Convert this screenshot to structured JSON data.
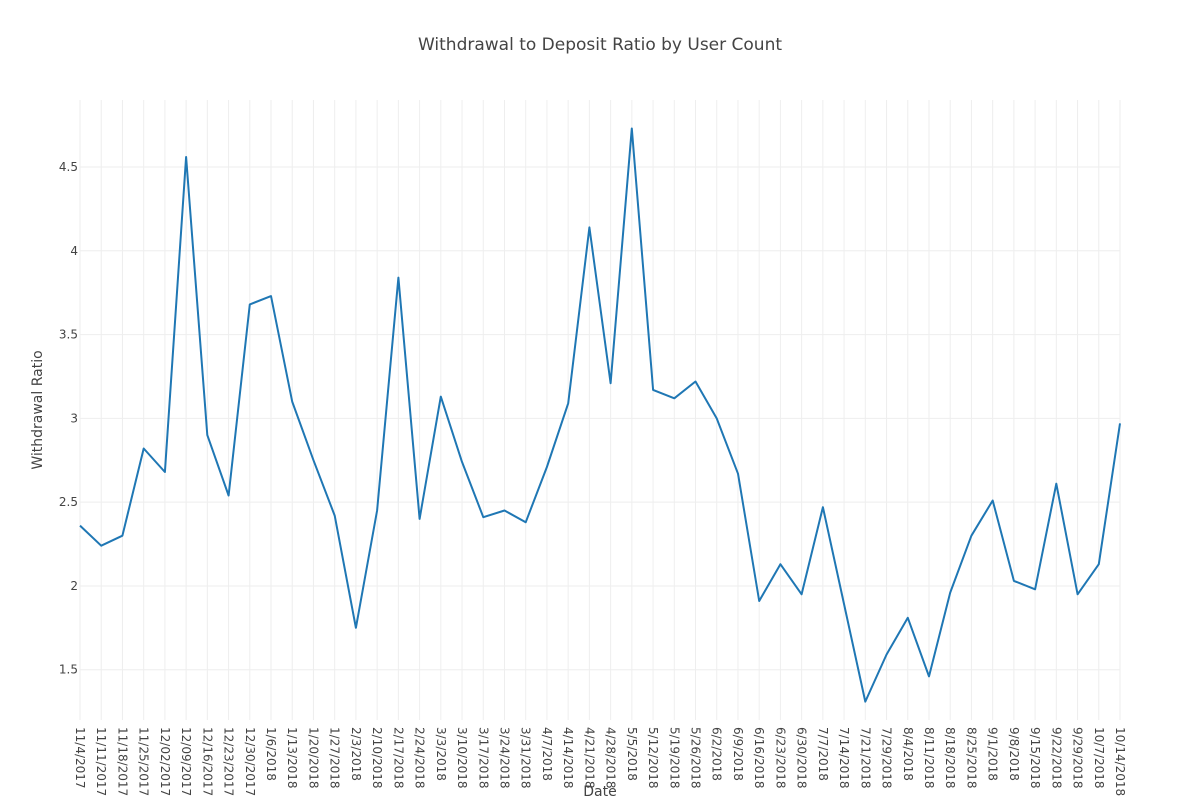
{
  "chart_data": {
    "type": "line",
    "title": "Withdrawal to Deposit Ratio by User Count",
    "xlabel": "Date",
    "ylabel": "Withdrawal Ratio",
    "ylim": [
      1.2,
      4.9
    ],
    "yticks": [
      1.5,
      2,
      2.5,
      3,
      3.5,
      4,
      4.5
    ],
    "ytick_labels": [
      "1.5",
      "2",
      "2.5",
      "3",
      "3.5",
      "4",
      "4.5"
    ],
    "grid": true,
    "legend": "none",
    "colors": {
      "line": "#1f77b4",
      "grid": "#eeeeee",
      "text": "#444444"
    },
    "x": [
      "11/4/2017",
      "11/11/2017",
      "11/18/2017",
      "11/25/2017",
      "12/02/2017",
      "12/09/2017",
      "12/16/2017",
      "12/23/2017",
      "12/30/2017",
      "1/6/2018",
      "1/13/2018",
      "1/20/2018",
      "1/27/2018",
      "2/3/2018",
      "2/10/2018",
      "2/17/2018",
      "2/24/2018",
      "3/3/2018",
      "3/10/2018",
      "3/17/2018",
      "3/24/2018",
      "3/31/2018",
      "4/7/2018",
      "4/14/2018",
      "4/21/2018",
      "4/28/2018",
      "5/5/2018",
      "5/12/2018",
      "5/19/2018",
      "5/26/2018",
      "6/2/2018",
      "6/9/2018",
      "6/16/2018",
      "6/23/2018",
      "6/30/2018",
      "7/7/2018",
      "7/14/2018",
      "7/21/2018",
      "7/29/2018",
      "8/4/2018",
      "8/11/2018",
      "8/18/2018",
      "8/25/2018",
      "9/1/2018",
      "9/8/2018",
      "9/15/2018",
      "9/22/2018",
      "9/29/2018",
      "10/7/2018",
      "10/14/2018"
    ],
    "series": [
      {
        "values": [
          2.36,
          2.24,
          2.3,
          2.82,
          2.68,
          4.56,
          2.9,
          2.54,
          3.68,
          3.73,
          3.1,
          2.75,
          2.42,
          1.75,
          2.45,
          3.84,
          2.4,
          3.13,
          2.74,
          2.41,
          2.45,
          2.38,
          2.71,
          3.09,
          4.14,
          3.21,
          4.73,
          3.17,
          3.12,
          3.22,
          3.0,
          2.67,
          1.91,
          2.13,
          1.95,
          2.47,
          1.89,
          1.31,
          1.59,
          1.81,
          1.46,
          1.96,
          2.3,
          2.51,
          2.03,
          1.98,
          2.61,
          1.95,
          2.13,
          2.97
        ]
      }
    ]
  }
}
